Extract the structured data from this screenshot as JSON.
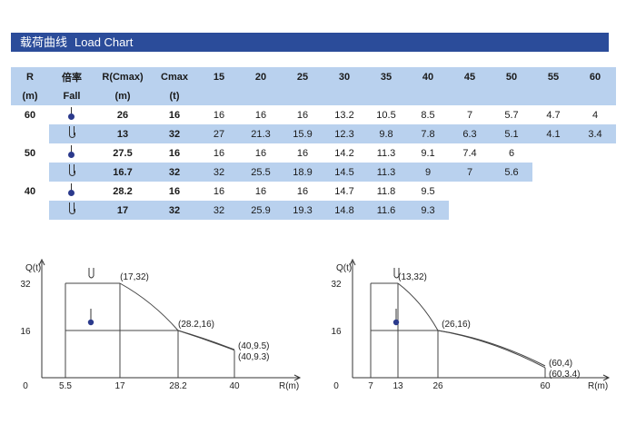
{
  "header": {
    "title_cn": "载荷曲线",
    "title_en": "Load Chart"
  },
  "table": {
    "head_row1": [
      "R",
      "倍率",
      "R(Cmax)",
      "Cmax",
      "15",
      "20",
      "25",
      "30",
      "35",
      "40",
      "45",
      "50",
      "55",
      "60"
    ],
    "head_row2": [
      "(m)",
      "Fall",
      "(m)",
      "(t)"
    ],
    "groups": [
      {
        "r": "60",
        "rows": [
          {
            "fall": "single",
            "rc": "26",
            "cmax": "16",
            "vals": [
              "16",
              "16",
              "16",
              "13.2",
              "10.5",
              "8.5",
              "7",
              "5.7",
              "4.7",
              "4"
            ]
          },
          {
            "fall": "double",
            "rc": "13",
            "cmax": "32",
            "vals": [
              "27",
              "21.3",
              "15.9",
              "12.3",
              "9.8",
              "7.8",
              "6.3",
              "5.1",
              "4.1",
              "3.4"
            ]
          }
        ]
      },
      {
        "r": "50",
        "rows": [
          {
            "fall": "single",
            "rc": "27.5",
            "cmax": "16",
            "vals": [
              "16",
              "16",
              "16",
              "14.2",
              "11.3",
              "9.1",
              "7.4",
              "6",
              "",
              ""
            ]
          },
          {
            "fall": "double",
            "rc": "16.7",
            "cmax": "32",
            "vals": [
              "32",
              "25.5",
              "18.9",
              "14.5",
              "11.3",
              "9",
              "7",
              "5.6",
              "",
              ""
            ]
          }
        ]
      },
      {
        "r": "40",
        "rows": [
          {
            "fall": "single",
            "rc": "28.2",
            "cmax": "16",
            "vals": [
              "16",
              "16",
              "16",
              "14.7",
              "11.8",
              "9.5",
              "",
              "",
              "",
              ""
            ]
          },
          {
            "fall": "double",
            "rc": "17",
            "cmax": "32",
            "vals": [
              "32",
              "25.9",
              "19.3",
              "14.8",
              "11.6",
              "9.3",
              "",
              "",
              "",
              ""
            ]
          }
        ]
      }
    ]
  },
  "chart_data": [
    {
      "type": "line",
      "ylabel": "Q(t)",
      "xlabel": "R(m)",
      "xticks": [
        "0",
        "5.5",
        "17",
        "28.2",
        "40"
      ],
      "yticks": [
        "16",
        "32"
      ],
      "xlim": [
        0,
        40
      ],
      "ylim": [
        0,
        32
      ],
      "series": [
        {
          "points": [
            [
              5.5,
              32
            ],
            [
              17,
              32
            ],
            [
              28.2,
              16
            ],
            [
              40,
              9.3
            ]
          ]
        },
        {
          "points": [
            [
              5.5,
              16
            ],
            [
              28.2,
              16
            ],
            [
              40,
              9.5
            ]
          ]
        }
      ],
      "annotations": [
        "(17,32)",
        "(28.2,16)",
        "(40,9.5)",
        "(40,9.3)"
      ]
    },
    {
      "type": "line",
      "ylabel": "Q(t)",
      "xlabel": "R(m)",
      "xticks": [
        "0",
        "7",
        "13",
        "26",
        "60"
      ],
      "yticks": [
        "16",
        "32"
      ],
      "xlim": [
        0,
        60
      ],
      "ylim": [
        0,
        32
      ],
      "series": [
        {
          "points": [
            [
              7,
              32
            ],
            [
              13,
              32
            ],
            [
              26,
              16
            ],
            [
              60,
              3.4
            ]
          ]
        },
        {
          "points": [
            [
              7,
              16
            ],
            [
              26,
              16
            ],
            [
              60,
              4
            ]
          ]
        }
      ],
      "annotations": [
        "(13,32)",
        "(26,16)",
        "(60,4)",
        "(60,3.4)"
      ]
    }
  ]
}
